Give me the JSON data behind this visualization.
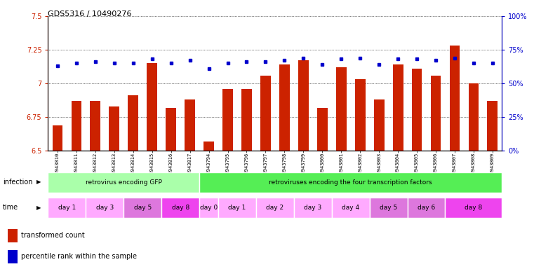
{
  "title": "GDS5316 / 10490276",
  "samples": [
    "GSM943810",
    "GSM943811",
    "GSM943812",
    "GSM943813",
    "GSM943814",
    "GSM943815",
    "GSM943816",
    "GSM943817",
    "GSM943794",
    "GSM943795",
    "GSM943796",
    "GSM943797",
    "GSM943798",
    "GSM943799",
    "GSM943800",
    "GSM943801",
    "GSM943802",
    "GSM943803",
    "GSM943804",
    "GSM943805",
    "GSM943806",
    "GSM943807",
    "GSM943808",
    "GSM943809"
  ],
  "red_values": [
    6.69,
    6.87,
    6.87,
    6.83,
    6.91,
    7.15,
    6.82,
    6.88,
    6.57,
    6.96,
    6.96,
    7.06,
    7.14,
    7.17,
    6.82,
    7.12,
    7.03,
    6.88,
    7.14,
    7.11,
    7.06,
    7.28,
    7.0,
    6.87
  ],
  "blue_values": [
    63,
    65,
    66,
    65,
    65,
    68,
    65,
    67,
    61,
    65,
    66,
    66,
    67,
    69,
    64,
    68,
    69,
    64,
    68,
    68,
    67,
    69,
    65,
    65
  ],
  "ylim_left": [
    6.5,
    7.5
  ],
  "ylim_right": [
    0,
    100
  ],
  "yticks_left": [
    6.5,
    6.75,
    7.0,
    7.25,
    7.5
  ],
  "ytick_labels_left": [
    "6.5",
    "6.75",
    "7",
    "7.25",
    "7.5"
  ],
  "yticks_right": [
    0,
    25,
    50,
    75,
    100
  ],
  "ytick_labels_right": [
    "0%",
    "25%",
    "50%",
    "75%",
    "100%"
  ],
  "infection_groups": [
    {
      "label": "retrovirus encoding GFP",
      "start": 0,
      "end": 8,
      "color": "#aaffaa"
    },
    {
      "label": "retroviruses encoding the four transcription factors",
      "start": 8,
      "end": 24,
      "color": "#55ee55"
    }
  ],
  "time_groups": [
    {
      "label": "day 1",
      "start": 0,
      "end": 2,
      "color": "#ffaaff"
    },
    {
      "label": "day 3",
      "start": 2,
      "end": 4,
      "color": "#ffaaff"
    },
    {
      "label": "day 5",
      "start": 4,
      "end": 6,
      "color": "#dd77dd"
    },
    {
      "label": "day 8",
      "start": 6,
      "end": 8,
      "color": "#ee44ee"
    },
    {
      "label": "day 0",
      "start": 8,
      "end": 9,
      "color": "#ffaaff"
    },
    {
      "label": "day 1",
      "start": 9,
      "end": 11,
      "color": "#ffaaff"
    },
    {
      "label": "day 2",
      "start": 11,
      "end": 13,
      "color": "#ffaaff"
    },
    {
      "label": "day 3",
      "start": 13,
      "end": 15,
      "color": "#ffaaff"
    },
    {
      "label": "day 4",
      "start": 15,
      "end": 17,
      "color": "#ffaaff"
    },
    {
      "label": "day 5",
      "start": 17,
      "end": 19,
      "color": "#dd77dd"
    },
    {
      "label": "day 6",
      "start": 19,
      "end": 21,
      "color": "#dd77dd"
    },
    {
      "label": "day 8",
      "start": 21,
      "end": 24,
      "color": "#ee44ee"
    }
  ],
  "bar_color": "#cc2200",
  "dot_color": "#0000cc",
  "legend_red": "transformed count",
  "legend_blue": "percentile rank within the sample"
}
